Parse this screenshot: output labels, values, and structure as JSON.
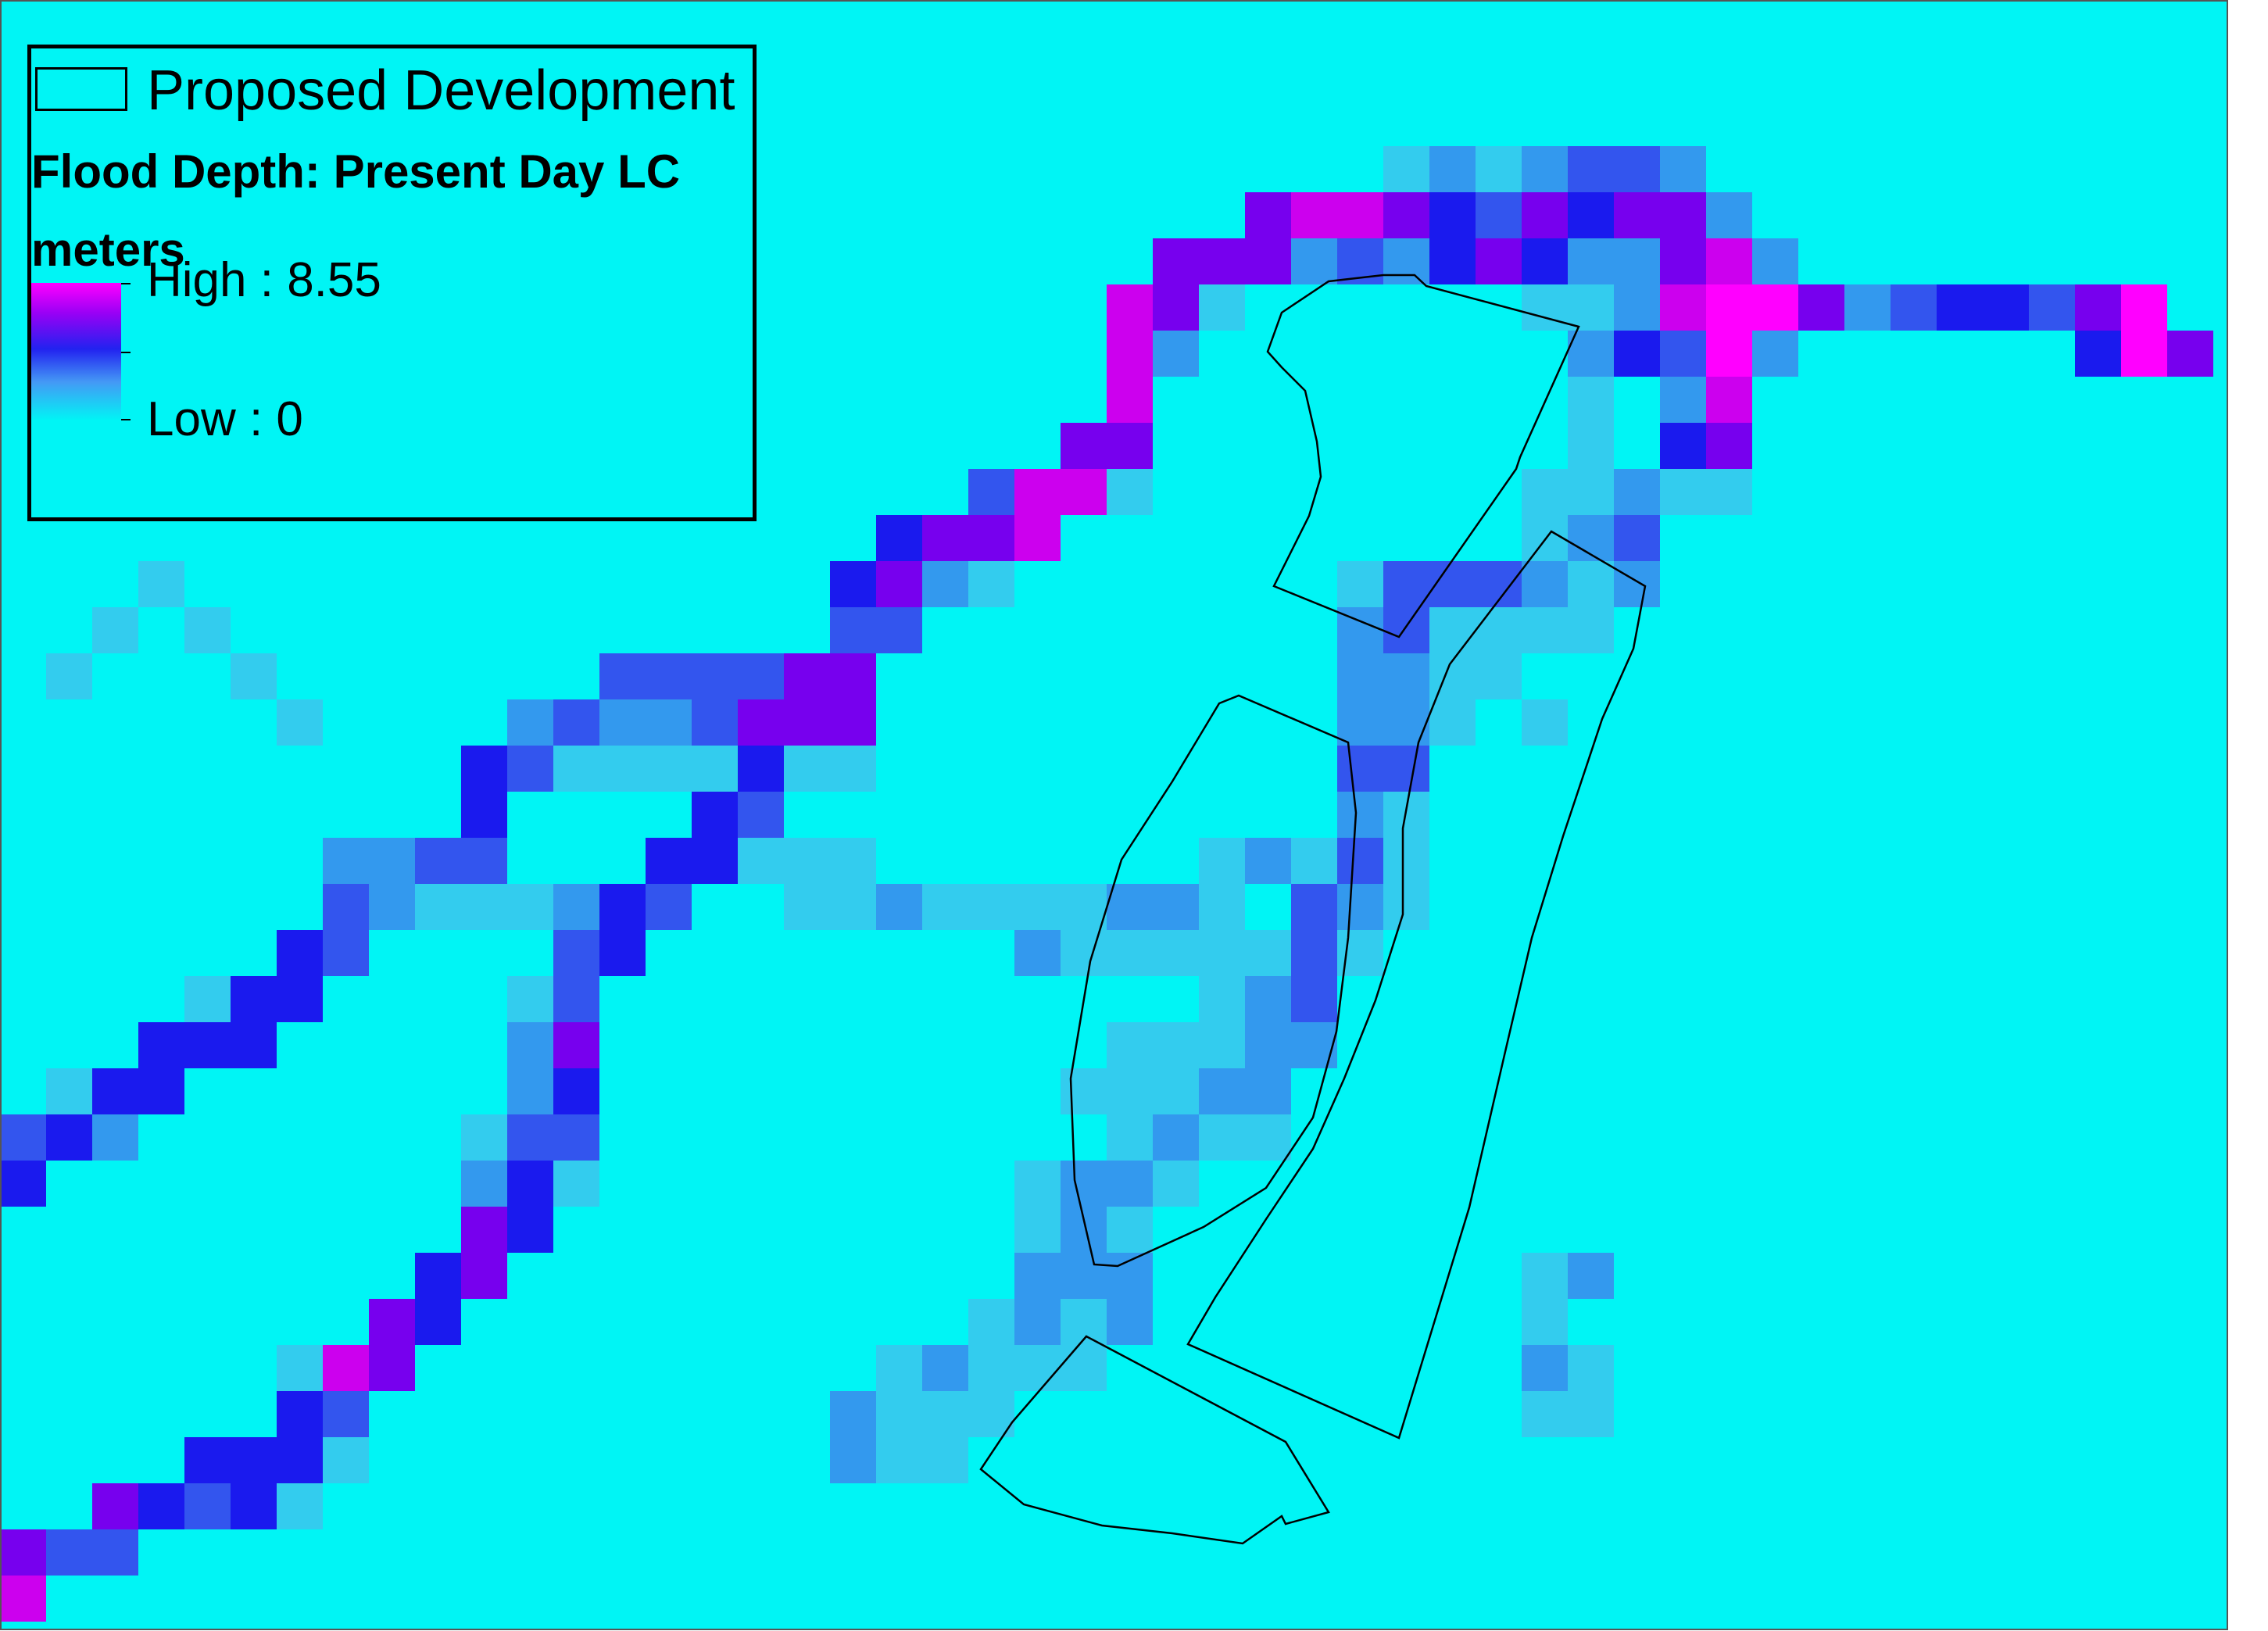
{
  "map": {
    "background_color": "#00F5F5",
    "outline_color": "#000000",
    "depth_colors": {
      "light": "#33CCEE",
      "medium": "#3399EE",
      "blue": "#3355EE",
      "deep_blue": "#1A1AEE",
      "violet": "#7700EE",
      "magenta": "#CC00EE",
      "high": "#FF00FF"
    },
    "flood_cells_description_note": ""
  },
  "legend": {
    "development_label": "Proposed Development",
    "title_line1": "Flood Depth: Present Day LC",
    "title_line2": "meters",
    "high_label": "High : 8.55",
    "low_label": "Low : 0",
    "ramp_colors": [
      "#FF00FF",
      "#9900F5",
      "#2222F0",
      "#4499F5",
      "#00F5F5"
    ]
  }
}
